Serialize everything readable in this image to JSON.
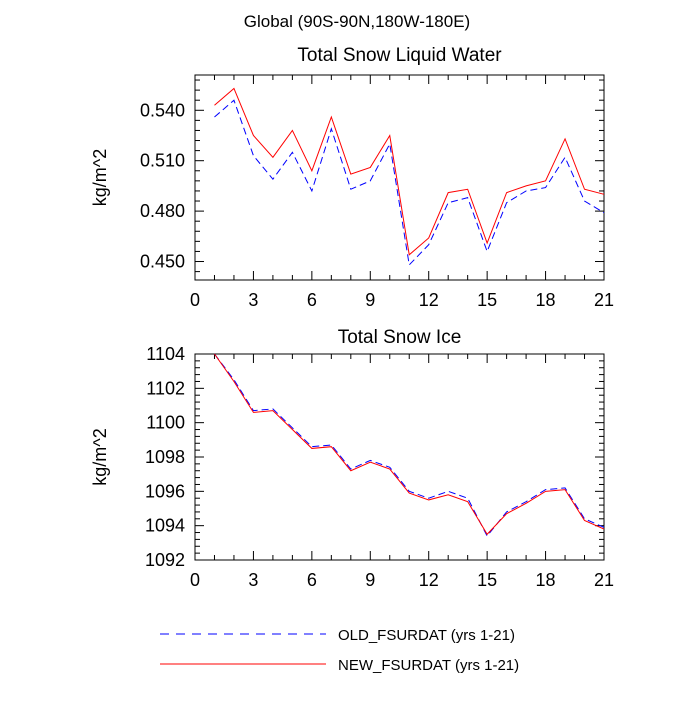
{
  "figure": {
    "title": "Global (90S-90N,180W-180E)"
  },
  "legend": {
    "items": [
      {
        "label": "OLD_FSURDAT (yrs 1-21)",
        "color": "#0000ff",
        "style": "dashed"
      },
      {
        "label": "NEW_FSURDAT (yrs 1-21)",
        "color": "#ff0000",
        "style": "solid"
      }
    ]
  },
  "chart_data": [
    {
      "type": "line",
      "title": "Total Snow Liquid Water",
      "xlabel": "",
      "ylabel": "kg/m^2",
      "xlim": [
        0,
        21
      ],
      "ylim": [
        0.439,
        0.561
      ],
      "xticks": [
        0,
        3,
        6,
        9,
        12,
        15,
        18,
        21
      ],
      "xtick_labels": [
        "0",
        "3",
        "6",
        "9",
        "12",
        "15",
        "18",
        "21"
      ],
      "yticks": [
        0.45,
        0.48,
        0.51,
        0.54
      ],
      "ytick_labels": [
        "0.450",
        "0.480",
        "0.510",
        "0.540"
      ],
      "x": [
        1,
        2,
        3,
        4,
        5,
        6,
        7,
        8,
        9,
        10,
        11,
        12,
        13,
        14,
        15,
        16,
        17,
        18,
        19,
        20,
        21
      ],
      "series": [
        {
          "name": "OLD_FSURDAT (yrs 1-21)",
          "color": "#0000ff",
          "style": "dashed",
          "values": [
            0.536,
            0.546,
            0.513,
            0.499,
            0.515,
            0.492,
            0.529,
            0.493,
            0.498,
            0.52,
            0.448,
            0.46,
            0.485,
            0.488,
            0.456,
            0.485,
            0.492,
            0.494,
            0.512,
            0.486,
            0.479
          ]
        },
        {
          "name": "NEW_FSURDAT (yrs 1-21)",
          "color": "#ff0000",
          "style": "solid",
          "values": [
            0.543,
            0.553,
            0.525,
            0.512,
            0.528,
            0.504,
            0.536,
            0.502,
            0.506,
            0.525,
            0.454,
            0.464,
            0.491,
            0.493,
            0.461,
            0.491,
            0.495,
            0.498,
            0.523,
            0.493,
            0.49
          ]
        }
      ]
    },
    {
      "type": "line",
      "title": "Total Snow Ice",
      "xlabel": "",
      "ylabel": "kg/m^2",
      "xlim": [
        0,
        21
      ],
      "ylim": [
        1092,
        1104
      ],
      "xticks": [
        0,
        3,
        6,
        9,
        12,
        15,
        18,
        21
      ],
      "xtick_labels": [
        "0",
        "3",
        "6",
        "9",
        "12",
        "15",
        "18",
        "21"
      ],
      "yticks": [
        1092,
        1094,
        1096,
        1098,
        1100,
        1102,
        1104
      ],
      "ytick_labels": [
        "1092",
        "1094",
        "1096",
        "1098",
        "1100",
        "1102",
        "1104"
      ],
      "x": [
        1,
        2,
        3,
        4,
        5,
        6,
        7,
        8,
        9,
        10,
        11,
        12,
        13,
        14,
        15,
        16,
        17,
        18,
        19,
        20,
        21
      ],
      "series": [
        {
          "name": "OLD_FSURDAT (yrs 1-21)",
          "color": "#0000ff",
          "style": "dashed",
          "values": [
            1104.0,
            1102.5,
            1100.7,
            1100.8,
            1099.7,
            1098.6,
            1098.7,
            1097.3,
            1097.8,
            1097.4,
            1096.0,
            1095.6,
            1096.0,
            1095.6,
            1093.4,
            1094.8,
            1095.4,
            1096.1,
            1096.2,
            1094.4,
            1093.9
          ]
        },
        {
          "name": "NEW_FSURDAT (yrs 1-21)",
          "color": "#ff0000",
          "style": "solid",
          "values": [
            1104.0,
            1102.4,
            1100.6,
            1100.7,
            1099.6,
            1098.5,
            1098.6,
            1097.2,
            1097.7,
            1097.3,
            1095.9,
            1095.5,
            1095.8,
            1095.4,
            1093.5,
            1094.7,
            1095.3,
            1096.0,
            1096.1,
            1094.3,
            1093.8
          ]
        }
      ]
    }
  ]
}
